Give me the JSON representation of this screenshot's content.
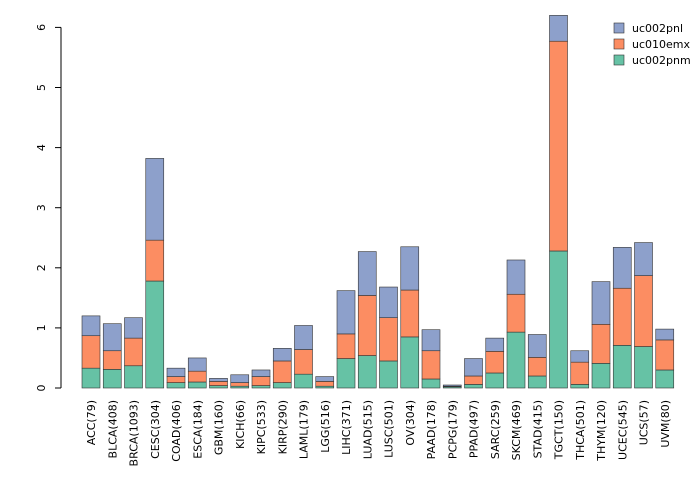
{
  "chart_data": {
    "type": "bar",
    "stacked": true,
    "title": "",
    "xlabel": "",
    "ylabel": "",
    "ylim": [
      0,
      6.2
    ],
    "yticks": [
      "0",
      "1",
      "2",
      "3",
      "4",
      "5",
      "6"
    ],
    "grid": false,
    "legend_position": "top-right",
    "categories": [
      "ACC(79)",
      "BLCA(408)",
      "BRCA(1093)",
      "CESC(304)",
      "COAD(406)",
      "ESCA(184)",
      "GBM(160)",
      "KICH(66)",
      "KIPC(533)",
      "KIRP(290)",
      "LAML(179)",
      "LGG(516)",
      "LIHC(371)",
      "LUAD(515)",
      "LUSC(501)",
      "OV(304)",
      "PAAD(178)",
      "PCPG(179)",
      "PPAD(497)",
      "SARC(259)",
      "SKCM(469)",
      "STAD(415)",
      "TGCT(150)",
      "THCA(501)",
      "THYM(120)",
      "UCEC(545)",
      "UCS(57)",
      "UVM(80)"
    ],
    "series": [
      {
        "name": "uc002pnm",
        "color": "#66c2a5",
        "values": [
          0.33,
          0.31,
          0.37,
          1.78,
          0.09,
          0.1,
          0.04,
          0.03,
          0.04,
          0.09,
          0.23,
          0.03,
          0.49,
          0.54,
          0.45,
          0.85,
          0.15,
          0.02,
          0.06,
          0.25,
          0.93,
          0.2,
          2.28,
          0.06,
          0.41,
          0.71,
          0.69,
          0.3
        ]
      },
      {
        "name": "uc010emx",
        "color": "#fc8d62",
        "values": [
          0.54,
          0.31,
          0.46,
          0.68,
          0.1,
          0.18,
          0.07,
          0.06,
          0.15,
          0.36,
          0.41,
          0.08,
          0.41,
          1.0,
          0.72,
          0.78,
          0.47,
          0.01,
          0.14,
          0.36,
          0.63,
          0.31,
          3.49,
          0.37,
          0.65,
          0.95,
          1.18,
          0.5
        ]
      },
      {
        "name": "uc002pnl",
        "color": "#8da0cb",
        "values": [
          0.33,
          0.45,
          0.34,
          1.36,
          0.14,
          0.22,
          0.05,
          0.13,
          0.11,
          0.21,
          0.4,
          0.08,
          0.72,
          0.73,
          0.51,
          0.72,
          0.35,
          0.02,
          0.29,
          0.22,
          0.57,
          0.38,
          0.43,
          0.19,
          0.71,
          0.68,
          0.55,
          0.18
        ]
      }
    ],
    "legend_order": [
      "uc002pnl",
      "uc010emx",
      "uc002pnm"
    ]
  }
}
